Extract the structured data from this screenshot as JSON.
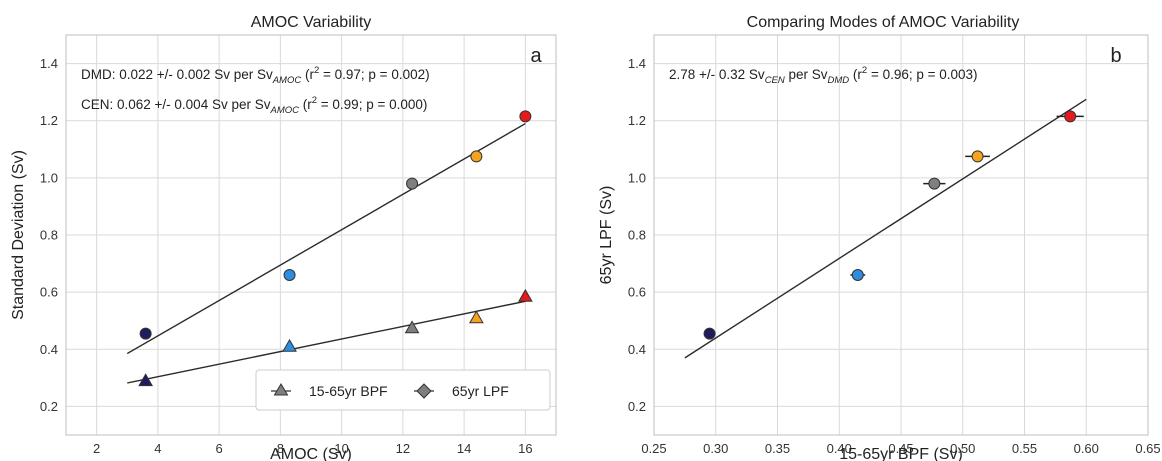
{
  "chart_data": [
    {
      "type": "scatter",
      "panel_letter": "a",
      "title": "AMOC Variability",
      "xlabel": "AMOC (Sv)",
      "ylabel": "Standard Deviation (Sv)",
      "xlim": [
        1,
        17
      ],
      "ylim": [
        0.1,
        1.5
      ],
      "xticks": [
        2,
        4,
        6,
        8,
        10,
        12,
        14,
        16
      ],
      "yticks": [
        0.2,
        0.4,
        0.6,
        0.8,
        1.0,
        1.2,
        1.4
      ],
      "xtick_labels": [
        "2",
        "4",
        "6",
        "8",
        "10",
        "12",
        "14",
        "16"
      ],
      "ytick_labels": [
        "0.2",
        "0.4",
        "0.6",
        "0.8",
        "1.0",
        "1.2",
        "1.4"
      ],
      "grid": true,
      "legend_position": "bottom-right",
      "colors": [
        "#1e1b5e",
        "#2d8de3",
        "#7f7f7f",
        "#f5a31e",
        "#e31b1b"
      ],
      "series": [
        {
          "name": "15-65yr BPF",
          "marker": "triangle",
          "x": [
            3.6,
            8.3,
            12.3,
            14.4,
            16.0
          ],
          "y": [
            0.29,
            0.41,
            0.475,
            0.51,
            0.585
          ],
          "fit": {
            "x": [
              3.0,
              16.0
            ],
            "y": [
              0.282,
              0.568
            ]
          }
        },
        {
          "name": "65yr LPF",
          "marker": "circle",
          "x": [
            3.6,
            8.3,
            12.3,
            14.4,
            16.0
          ],
          "y": [
            0.455,
            0.66,
            0.98,
            1.075,
            1.215
          ],
          "fit": {
            "x": [
              3.0,
              16.0
            ],
            "y": [
              0.385,
              1.19
            ]
          }
        }
      ],
      "annotations": [
        {
          "base": "DMD:  0.022 +/- 0.002 Sv per Sv",
          "sub": "AMOC",
          "r_prefix": " (r",
          "sup": "2",
          "stats": " = 0.97; p = 0.002)"
        },
        {
          "base": "CEN: 0.062 +/- 0.004 Sv per Sv",
          "sub": "AMOC",
          "r_prefix": " (r",
          "sup": "2",
          "stats": " = 0.99; p = 0.000)"
        }
      ]
    },
    {
      "type": "scatter",
      "panel_letter": "b",
      "title": "Comparing Modes of AMOC Variability",
      "xlabel": "15-65yr BPF (Sv)",
      "ylabel": "65yr LPF (Sv)",
      "xlim": [
        0.25,
        0.65
      ],
      "ylim": [
        0.1,
        1.5
      ],
      "xticks": [
        0.25,
        0.3,
        0.35,
        0.4,
        0.45,
        0.5,
        0.55,
        0.6,
        0.65
      ],
      "yticks": [
        0.2,
        0.4,
        0.6,
        0.8,
        1.0,
        1.2,
        1.4
      ],
      "xtick_labels": [
        "0.25",
        "0.30",
        "0.35",
        "0.40",
        "0.45",
        "0.50",
        "0.55",
        "0.60",
        "0.65"
      ],
      "ytick_labels": [
        "0.2",
        "0.4",
        "0.6",
        "0.8",
        "1.0",
        "1.2",
        "1.4"
      ],
      "grid": true,
      "colors": [
        "#1e1b5e",
        "#2d8de3",
        "#7f7f7f",
        "#f5a31e",
        "#e31b1b"
      ],
      "series": [
        {
          "marker": "circle",
          "x": [
            0.295,
            0.415,
            0.477,
            0.512,
            0.587
          ],
          "y": [
            0.455,
            0.66,
            0.98,
            1.075,
            1.215
          ],
          "xerr": [
            0.0,
            0.006,
            0.009,
            0.01,
            0.011
          ],
          "fit": {
            "x": [
              0.275,
              0.6
            ],
            "y": [
              0.37,
              1.275
            ]
          }
        }
      ],
      "annotations": [
        {
          "base": "2.78 +/- 0.32 Sv",
          "sub": "CEN",
          "mid": " per Sv",
          "sub2": "DMD",
          "r_prefix": " (r",
          "sup": "2",
          "stats": " = 0.96; p = 0.003)"
        }
      ]
    }
  ]
}
